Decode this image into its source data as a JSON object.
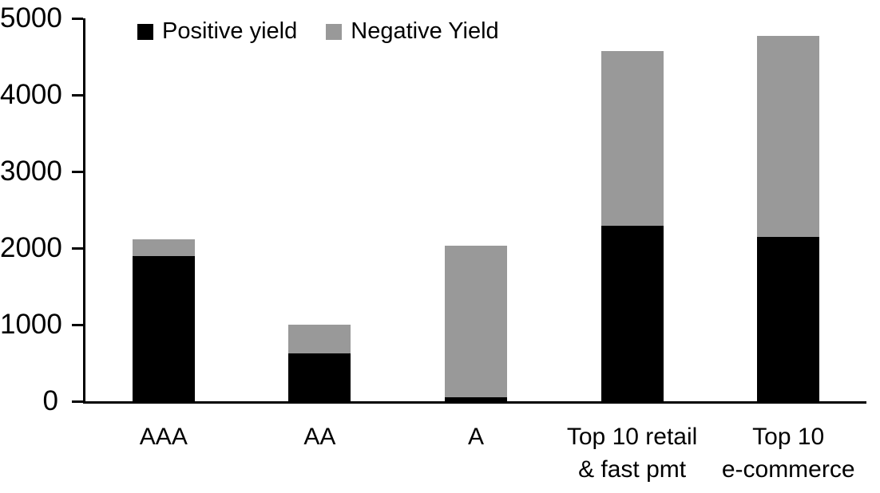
{
  "chart_data": {
    "type": "bar",
    "stacked": true,
    "title": "",
    "xlabel": "",
    "ylabel": "",
    "categories": [
      "AAA",
      "AA",
      "A",
      "Top 10 retail\n& fast pmt",
      "Top 10\ne-commerce"
    ],
    "series": [
      {
        "name": "Positive yield",
        "color": "#000000",
        "values": [
          1900,
          620,
          50,
          2290,
          2150
        ]
      },
      {
        "name": "Negative Yield",
        "color": "#999999",
        "values": [
          220,
          380,
          1980,
          2280,
          2620
        ]
      }
    ],
    "totals": [
      2120,
      1000,
      2030,
      4570,
      4770
    ],
    "ylim": [
      0,
      5000
    ],
    "yticks": [
      0,
      1000,
      2000,
      3000,
      4000,
      5000
    ],
    "grid": false,
    "legend_position": "top-inside-left"
  },
  "colors": {
    "background": "#ffffff",
    "axis": "#000000",
    "text": "#000000"
  }
}
